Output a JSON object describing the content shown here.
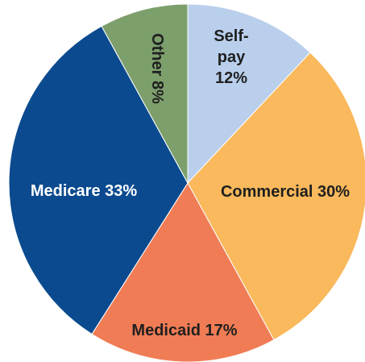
{
  "chart_data": {
    "type": "pie",
    "title": "",
    "slices": [
      {
        "label": "Self-pay",
        "value": 12,
        "display_lines": [
          "Self-",
          "pay",
          "12%"
        ],
        "color": "#b9cfec",
        "text_color": "#1f1f1f"
      },
      {
        "label": "Commercial",
        "value": 30,
        "display_lines": [
          "Commercial 30%"
        ],
        "color": "#f9b95c",
        "text_color": "#1f1f1f"
      },
      {
        "label": "Medicaid",
        "value": 17,
        "display_lines": [
          "Medicaid 17%"
        ],
        "color": "#f07c55",
        "text_color": "#1f1f1f"
      },
      {
        "label": "Medicare",
        "value": 33,
        "display_lines": [
          "Medicare 33%"
        ],
        "color": "#0b4a8f",
        "text_color": "#ffffff"
      },
      {
        "label": "Other",
        "value": 8,
        "display_lines": [
          "Other 8%"
        ],
        "color": "#7c9f6c",
        "text_color": "#1f1f1f"
      }
    ],
    "start_angle_deg": 0,
    "direction": "clockwise",
    "legend": "none"
  }
}
